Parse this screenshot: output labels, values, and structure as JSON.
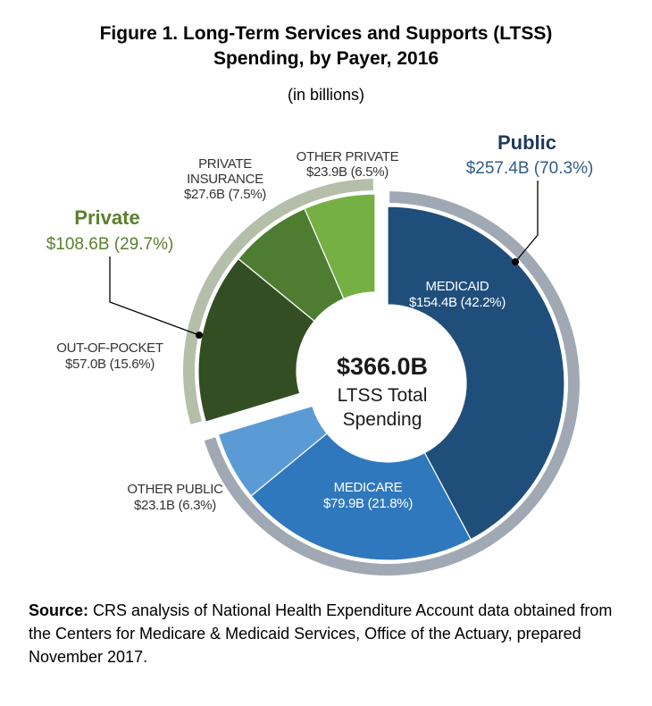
{
  "title_line1": "Figure 1. Long-Term Services and Supports (LTSS)",
  "title_line2": "Spending, by Payer, 2016",
  "subtitle": "(in billions)",
  "center": {
    "total": "$366.0B",
    "label1": "LTSS Total",
    "label2": "Spending"
  },
  "groups": {
    "public": {
      "name": "Public",
      "value_label": "$257.4B (70.3%)",
      "color": "#1f3a5f"
    },
    "private": {
      "name": "Private",
      "value_label": "$108.6B (29.7%)",
      "color": "#5a7f2e"
    }
  },
  "chart_data": {
    "type": "pie",
    "title": "Figure 1. Long-Term Services and Supports (LTSS) Spending, by Payer, 2016",
    "subtitle": "(in billions)",
    "total": 366.0,
    "slices": [
      {
        "name": "MEDICAID",
        "value": 154.4,
        "percent": 42.2,
        "group": "Public",
        "label_lines": [
          "MEDICAID",
          "$154.4B (42.2%)"
        ],
        "color": "#1f4e7b"
      },
      {
        "name": "MEDICARE",
        "value": 79.9,
        "percent": 21.8,
        "group": "Public",
        "label_lines": [
          "MEDICARE",
          "$79.9B (21.8%)"
        ],
        "color": "#2f78bd"
      },
      {
        "name": "OTHER PUBLIC",
        "value": 23.1,
        "percent": 6.3,
        "group": "Public",
        "label_lines": [
          "OTHER PUBLIC",
          "$23.1B (6.3%)"
        ],
        "color": "#5b9bd5"
      },
      {
        "name": "OUT-OF-POCKET",
        "value": 57.0,
        "percent": 15.6,
        "group": "Private",
        "label_lines": [
          "OUT-OF-POCKET",
          "$57.0B (15.6%)"
        ],
        "color": "#344e24"
      },
      {
        "name": "PRIVATE INSURANCE",
        "value": 27.6,
        "percent": 7.5,
        "group": "Private",
        "label_lines": [
          "PRIVATE",
          "INSURANCE",
          "$27.6B (7.5%)"
        ],
        "color": "#4e7d32"
      },
      {
        "name": "OTHER PRIVATE",
        "value": 23.9,
        "percent": 6.5,
        "group": "Private",
        "label_lines": [
          "OTHER PRIVATE",
          "$23.9B (6.5%)"
        ],
        "color": "#75b045"
      }
    ],
    "group_ring_colors": {
      "Public": "#a0a9b3",
      "Private": "#b5bea8"
    }
  },
  "source": {
    "label": "Source:",
    "text": " CRS analysis of National Health Expenditure Account data obtained from the Centers for Medicare & Medicaid Services, Office of the Actuary, prepared November 2017."
  }
}
